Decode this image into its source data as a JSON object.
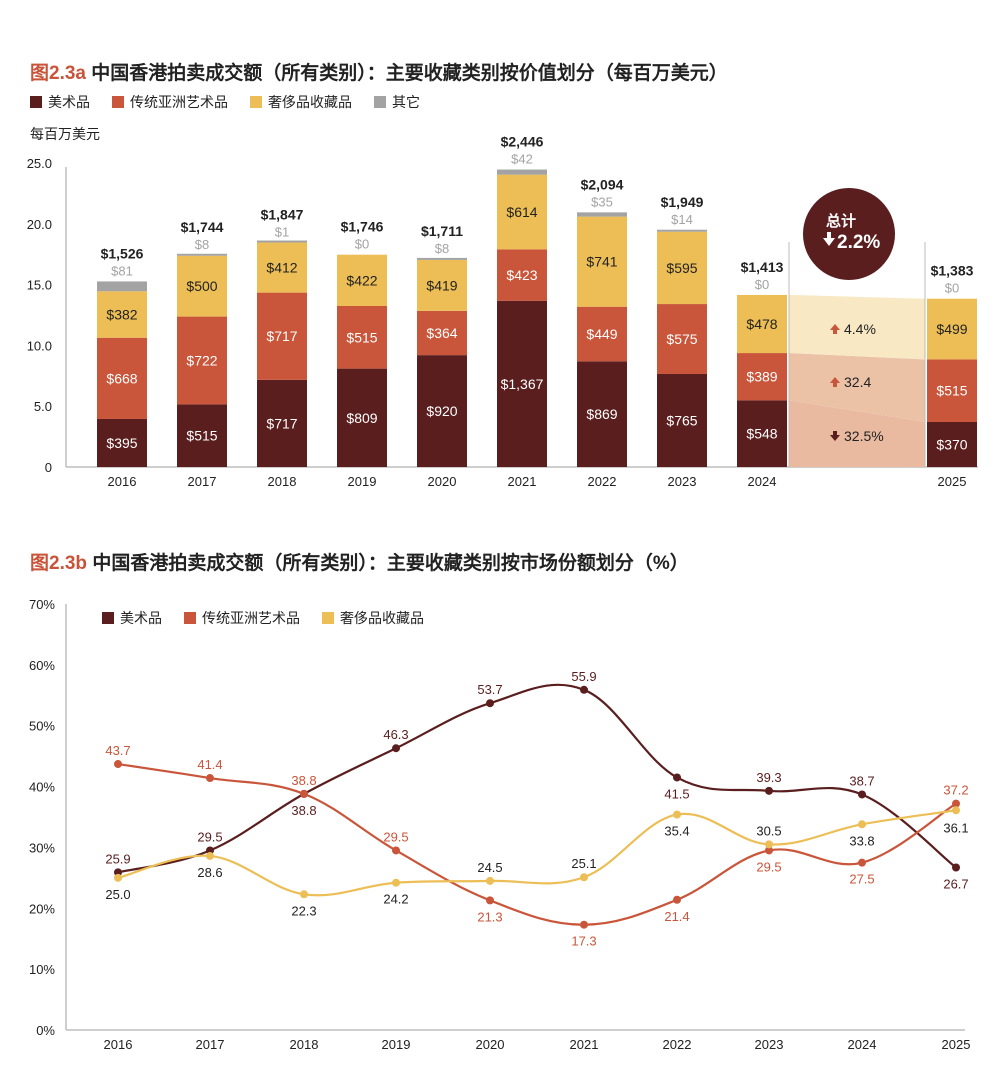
{
  "chart_data": [
    {
      "type": "bar",
      "stacked": true,
      "title_prefix": "图2.3a",
      "title": "中国香港拍卖成交额（所有类别）：主要收藏类别按价值划分（每百万美元）",
      "ylabel": "每百万美元",
      "ylim": [
        0,
        25
      ],
      "yticks": [
        "0",
        "5.0",
        "10.0",
        "15.0",
        "20.0",
        "25.0"
      ],
      "ytick_values": [
        0,
        5,
        10,
        15,
        20,
        25
      ],
      "categories": [
        "2016",
        "2017",
        "2018",
        "2019",
        "2020",
        "2021",
        "2022",
        "2023",
        "2024",
        "2025"
      ],
      "series": [
        {
          "name": "美术品",
          "color": "#5a1e1e",
          "values": [
            395,
            515,
            717,
            809,
            920,
            1367,
            869,
            765,
            548,
            370
          ],
          "labels": [
            "$395",
            "$515",
            "$717",
            "$809",
            "$920",
            "$1,367",
            "$869",
            "$765",
            "$548",
            "$370"
          ]
        },
        {
          "name": "传统亚洲艺术品",
          "color": "#c9553a",
          "values": [
            668,
            722,
            717,
            515,
            364,
            423,
            449,
            575,
            389,
            515
          ],
          "labels": [
            "$668",
            "$722",
            "$717",
            "$515",
            "$364",
            "$423",
            "$449",
            "$575",
            "$389",
            "$515"
          ]
        },
        {
          "name": "奢侈品收藏品",
          "color": "#ecbe55",
          "values": [
            382,
            500,
            412,
            422,
            419,
            614,
            741,
            595,
            478,
            499
          ],
          "labels": [
            "$382",
            "$500",
            "$412",
            "$422",
            "$419",
            "$614",
            "$741",
            "$595",
            "$478",
            "$499"
          ]
        },
        {
          "name": "其它",
          "color": "#a3a3a3",
          "values": [
            81,
            8,
            1,
            0,
            8,
            42,
            35,
            14,
            0,
            0
          ],
          "labels": [
            "$81",
            "$8",
            "$1",
            "$0",
            "$8",
            "$42",
            "$35",
            "$14",
            "$0",
            "$0"
          ]
        }
      ],
      "totals": [
        "$1,526",
        "$1,744",
        "$1,847",
        "$1,746",
        "$1,711",
        "$2,446",
        "$2,094",
        "$1,949",
        "$1,413",
        "$1,383"
      ],
      "scale_note": "bar heights drawn in units of $100M (value/100)",
      "change_annotations": [
        {
          "series": "奢侈品收藏品",
          "direction": "up",
          "text": "4.4%"
        },
        {
          "series": "传统亚洲艺术品",
          "direction": "up",
          "text": "32.4"
        },
        {
          "series": "美术品",
          "direction": "down",
          "text": "32.5%"
        }
      ],
      "total_change": {
        "label": "总计",
        "direction": "down",
        "text": "2.2%"
      }
    },
    {
      "type": "line",
      "title_prefix": "图2.3b",
      "title": "中国香港拍卖成交额（所有类别）：主要收藏类别按市场份额划分（%）",
      "ylim": [
        0,
        70
      ],
      "yticks": [
        "0%",
        "10%",
        "20%",
        "30%",
        "40%",
        "50%",
        "60%",
        "70%"
      ],
      "ytick_values": [
        0,
        10,
        20,
        30,
        40,
        50,
        60,
        70
      ],
      "x": [
        "2016",
        "2017",
        "2018",
        "2019",
        "2020",
        "2021",
        "2022",
        "2023",
        "2024",
        "2025"
      ],
      "series": [
        {
          "name": "美术品",
          "color": "#5a1e1e",
          "label_color": "#5a1e1e",
          "values": [
            25.9,
            29.5,
            38.8,
            46.3,
            53.7,
            55.9,
            41.5,
            39.3,
            38.7,
            26.7
          ]
        },
        {
          "name": "传统亚洲艺术品",
          "color": "#c9553a",
          "label_color": "#c9553a",
          "values": [
            43.7,
            41.4,
            38.8,
            29.5,
            21.3,
            17.3,
            21.4,
            29.5,
            27.5,
            37.2
          ]
        },
        {
          "name": "奢侈品收藏品",
          "color": "#ecbe55",
          "label_color": "#222222",
          "values": [
            25.0,
            28.6,
            22.3,
            24.2,
            24.5,
            25.1,
            35.4,
            30.5,
            33.8,
            36.1
          ]
        }
      ],
      "legend_position": "top-left"
    }
  ]
}
